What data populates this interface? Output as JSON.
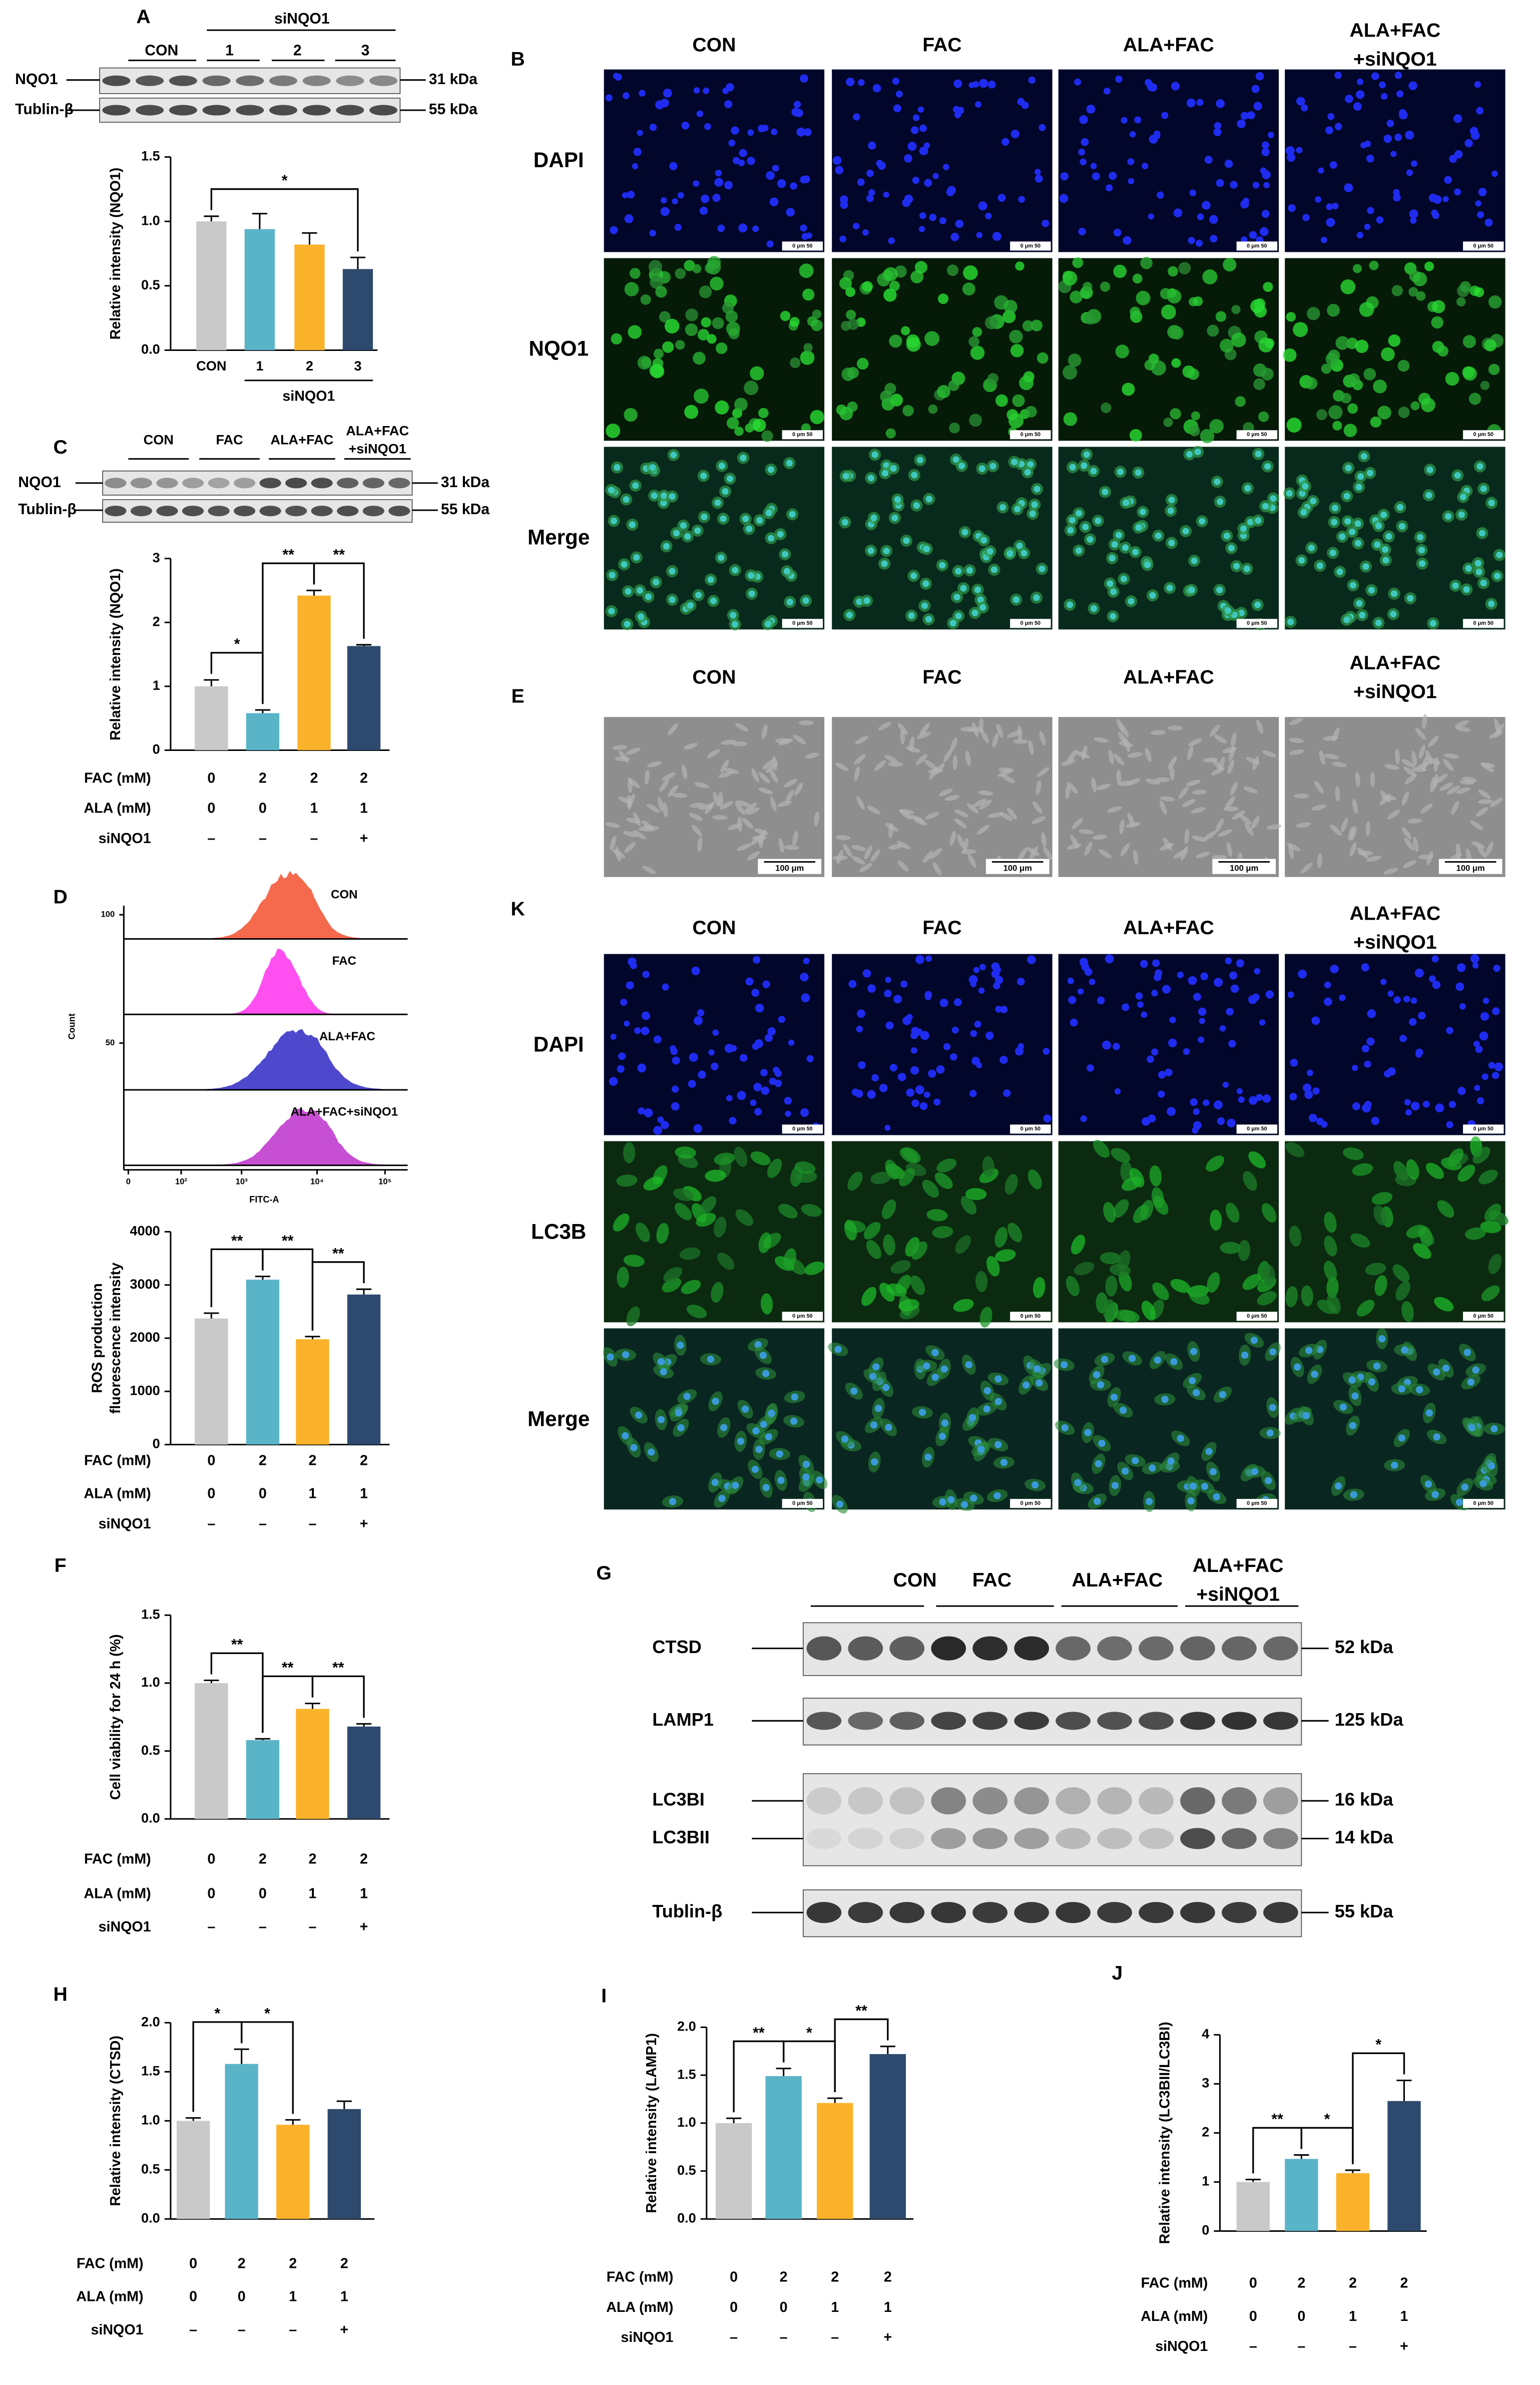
{
  "panels": {
    "A": {
      "letter": "A",
      "blot": {
        "headers": [
          "CON",
          "1",
          "2",
          "3"
        ],
        "group": "siNQO1",
        "rows": [
          "NQO1",
          "Tublin-β"
        ],
        "sizes": [
          "31 kDa",
          "55 kDa"
        ]
      }
    },
    "B": {
      "letter": "B",
      "columns": [
        [
          "CON"
        ],
        [
          "FAC"
        ],
        [
          "ALA+FAC"
        ],
        [
          "ALA+FAC",
          "+siNQO1"
        ]
      ],
      "rows": [
        "DAPI",
        "NQO1",
        "Merge"
      ],
      "scale_bar": "0 μm 50"
    },
    "C": {
      "letter": "C",
      "blot": {
        "headers": [
          [
            "CON"
          ],
          [
            "FAC"
          ],
          [
            "ALA+FAC"
          ],
          [
            "ALA+FAC",
            "+siNQO1"
          ]
        ],
        "rows": [
          "NQO1",
          "Tublin-β"
        ],
        "sizes": [
          "31 kDa",
          "55 kDa"
        ]
      }
    },
    "D": {
      "letter": "D",
      "histogram": {
        "ylabel": "Count",
        "xlabel": "FITC-A",
        "yticks": [
          "100",
          "50"
        ],
        "xticks": [
          "0",
          "10²",
          "10³",
          "10⁴",
          "10⁵"
        ],
        "series": [
          {
            "name": "CON",
            "color": "#f4593a"
          },
          {
            "name": "FAC",
            "color": "#ff3cf0"
          },
          {
            "name": "ALA+FAC",
            "color": "#3b35c8"
          },
          {
            "name": "ALA+FAC+siNQO1",
            "color": "#c23ccf"
          }
        ]
      }
    },
    "E": {
      "letter": "E",
      "columns": [
        [
          "CON"
        ],
        [
          "FAC"
        ],
        [
          "ALA+FAC"
        ],
        [
          "ALA+FAC",
          "+siNQO1"
        ]
      ],
      "scale_bar": "100 μm"
    },
    "F": {
      "letter": "F"
    },
    "G": {
      "letter": "G",
      "blot": {
        "headers": [
          [
            "CON"
          ],
          [
            "FAC"
          ],
          [
            "ALA+FAC"
          ],
          [
            "ALA+FAC",
            "+siNQO1"
          ]
        ],
        "rows": [
          "CTSD",
          "LAMP1",
          "LC3BI",
          "LC3BII",
          "Tublin-β"
        ],
        "sizes": [
          "52 kDa",
          "125 kDa",
          "16 kDa",
          "14 kDa",
          "55 kDa"
        ]
      }
    },
    "H": {
      "letter": "H"
    },
    "I": {
      "letter": "I"
    },
    "J": {
      "letter": "J"
    },
    "K": {
      "letter": "K",
      "columns": [
        [
          "CON"
        ],
        [
          "FAC"
        ],
        [
          "ALA+FAC"
        ],
        [
          "ALA+FAC",
          "+siNQO1"
        ]
      ],
      "rows": [
        "DAPI",
        "LC3B",
        "Merge"
      ],
      "scale_bar": "0 μm 50"
    }
  },
  "chart_data": [
    {
      "type": "bar",
      "ylabel": "Relative intensity (NQO1)",
      "categories": [
        "CON",
        "1",
        "2",
        "3"
      ],
      "group": "siNQO1",
      "values": [
        1.0,
        0.94,
        0.82,
        0.63
      ],
      "errors": [
        0.04,
        0.12,
        0.09,
        0.09
      ],
      "colors": [
        "#c9c9c9",
        "#5ab4c8",
        "#fbb22b",
        "#2d4a6e"
      ],
      "ylim": [
        0,
        1.5
      ],
      "yticks": [
        {
          "value": 0,
          "label": "0.0"
        },
        {
          "value": 0.5,
          "label": "0.5"
        },
        {
          "value": 1,
          "label": "1.0"
        },
        {
          "value": 1.5,
          "label": "1.5"
        }
      ],
      "significance": [
        {
          "from": 0,
          "to": 3,
          "label": "*"
        }
      ]
    },
    {
      "type": "bar",
      "ylabel": "Relative intensity (NQO1)",
      "values": [
        1.0,
        0.58,
        2.42,
        1.63
      ],
      "errors": [
        0.1,
        0.05,
        0.08,
        0.02
      ],
      "colors": [
        "#c9c9c9",
        "#5ab4c8",
        "#fbb22b",
        "#2d4a6e"
      ],
      "ylim": [
        0,
        3
      ],
      "yticks": [
        0,
        1,
        2,
        3
      ],
      "significance": [
        {
          "from": 0,
          "to": 1,
          "label": "*"
        },
        {
          "from": 1,
          "to": 2,
          "label": "**"
        },
        {
          "from": 2,
          "to": 3,
          "label": "**"
        }
      ],
      "conditions": [
        {
          "label": "FAC (mM)",
          "values": [
            "0",
            "2",
            "2",
            "2"
          ]
        },
        {
          "label": "ALA (mM)",
          "values": [
            "0",
            "0",
            "1",
            "1"
          ]
        },
        {
          "label": "siNQO1",
          "values": [
            "–",
            "–",
            "–",
            "+"
          ]
        }
      ]
    },
    {
      "type": "bar",
      "ylabel": [
        "ROS production",
        "fluorescence intensity"
      ],
      "values": [
        2370,
        3100,
        1980,
        2820
      ],
      "errors": [
        100,
        60,
        50,
        100
      ],
      "colors": [
        "#c9c9c9",
        "#5ab4c8",
        "#fbb22b",
        "#2d4a6e"
      ],
      "ylim": [
        0,
        4000
      ],
      "yticks": [
        0,
        1000,
        2000,
        3000,
        4000
      ],
      "significance": [
        {
          "from": 0,
          "to": 1,
          "label": "**"
        },
        {
          "from": 1,
          "to": 2,
          "label": "**"
        },
        {
          "from": 2,
          "to": 3,
          "label": "**"
        }
      ],
      "conditions": [
        {
          "label": "FAC (mM)",
          "values": [
            "0",
            "2",
            "2",
            "2"
          ]
        },
        {
          "label": "ALA (mM)",
          "values": [
            "0",
            "0",
            "1",
            "1"
          ]
        },
        {
          "label": "siNQO1",
          "values": [
            "–",
            "–",
            "–",
            "+"
          ]
        }
      ]
    },
    {
      "type": "bar",
      "ylabel": "Cell viability for 24 h (%)",
      "values": [
        1.0,
        0.58,
        0.81,
        0.68
      ],
      "errors": [
        0.02,
        0.01,
        0.04,
        0.02
      ],
      "colors": [
        "#c9c9c9",
        "#5ab4c8",
        "#fbb22b",
        "#2d4a6e"
      ],
      "ylim": [
        0,
        1.5
      ],
      "yticks": [
        {
          "value": 0,
          "label": "0.0"
        },
        {
          "value": 0.5,
          "label": "0.5"
        },
        {
          "value": 1,
          "label": "1.0"
        },
        {
          "value": 1.5,
          "label": "1.5"
        }
      ],
      "significance": [
        {
          "from": 0,
          "to": 1,
          "label": "**"
        },
        {
          "from": 1,
          "to": 2,
          "label": "**"
        },
        {
          "from": 2,
          "to": 3,
          "label": "**"
        }
      ],
      "conditions": [
        {
          "label": "FAC (mM)",
          "values": [
            "0",
            "2",
            "2",
            "2"
          ]
        },
        {
          "label": "ALA (mM)",
          "values": [
            "0",
            "0",
            "1",
            "1"
          ]
        },
        {
          "label": "siNQO1",
          "values": [
            "–",
            "–",
            "–",
            "+"
          ]
        }
      ]
    },
    {
      "type": "bar",
      "ylabel": "Relative intensity (CTSD)",
      "values": [
        1.0,
        1.58,
        0.96,
        1.12
      ],
      "errors": [
        0.03,
        0.15,
        0.05,
        0.08
      ],
      "colors": [
        "#c9c9c9",
        "#5ab4c8",
        "#fbb22b",
        "#2d4a6e"
      ],
      "ylim": [
        0,
        2
      ],
      "yticks": [
        {
          "value": 0,
          "label": "0.0"
        },
        {
          "value": 0.5,
          "label": "0.5"
        },
        {
          "value": 1,
          "label": "1.0"
        },
        {
          "value": 1.5,
          "label": "1.5"
        },
        {
          "value": 2,
          "label": "2.0"
        }
      ],
      "significance": [
        {
          "from": 0,
          "to": 1,
          "label": "*"
        },
        {
          "from": 1,
          "to": 2,
          "label": "*"
        }
      ],
      "conditions": [
        {
          "label": "FAC (mM)",
          "values": [
            "0",
            "2",
            "2",
            "2"
          ]
        },
        {
          "label": "ALA (mM)",
          "values": [
            "0",
            "0",
            "1",
            "1"
          ]
        },
        {
          "label": "siNQO1",
          "values": [
            "–",
            "–",
            "–",
            "+"
          ]
        }
      ]
    },
    {
      "type": "bar",
      "ylabel": "Relative intensity (LAMP1)",
      "values": [
        1.0,
        1.49,
        1.21,
        1.72
      ],
      "errors": [
        0.05,
        0.08,
        0.05,
        0.08
      ],
      "colors": [
        "#c9c9c9",
        "#5ab4c8",
        "#fbb22b",
        "#2d4a6e"
      ],
      "ylim": [
        0,
        2
      ],
      "yticks": [
        {
          "value": 0,
          "label": "0.0"
        },
        {
          "value": 0.5,
          "label": "0.5"
        },
        {
          "value": 1,
          "label": "1.0"
        },
        {
          "value": 1.5,
          "label": "1.5"
        },
        {
          "value": 2,
          "label": "2.0"
        }
      ],
      "significance": [
        {
          "from": 0,
          "to": 1,
          "label": "**"
        },
        {
          "from": 1,
          "to": 2,
          "label": "*"
        },
        {
          "from": 2,
          "to": 3,
          "label": "**"
        }
      ],
      "conditions": [
        {
          "label": "FAC (mM)",
          "values": [
            "0",
            "2",
            "2",
            "2"
          ]
        },
        {
          "label": "ALA (mM)",
          "values": [
            "0",
            "0",
            "1",
            "1"
          ]
        },
        {
          "label": "siNQO1",
          "values": [
            "–",
            "–",
            "–",
            "+"
          ]
        }
      ]
    },
    {
      "type": "bar",
      "ylabel": "Relative intensity (LC3BII/LC3BI)",
      "values": [
        1.0,
        1.47,
        1.18,
        2.65
      ],
      "errors": [
        0.05,
        0.08,
        0.06,
        0.42
      ],
      "colors": [
        "#c9c9c9",
        "#5ab4c8",
        "#fbb22b",
        "#2d4a6e"
      ],
      "ylim": [
        0,
        4
      ],
      "yticks": [
        0,
        1,
        2,
        3,
        4
      ],
      "significance": [
        {
          "from": 0,
          "to": 1,
          "label": "**"
        },
        {
          "from": 1,
          "to": 2,
          "label": "*"
        },
        {
          "from": 2,
          "to": 3,
          "label": "*"
        }
      ],
      "conditions": [
        {
          "label": "FAC (mM)",
          "values": [
            "0",
            "2",
            "2",
            "2"
          ]
        },
        {
          "label": "ALA (mM)",
          "values": [
            "0",
            "0",
            "1",
            "1"
          ]
        },
        {
          "label": "siNQO1",
          "values": [
            "–",
            "–",
            "–",
            "+"
          ]
        }
      ]
    }
  ]
}
